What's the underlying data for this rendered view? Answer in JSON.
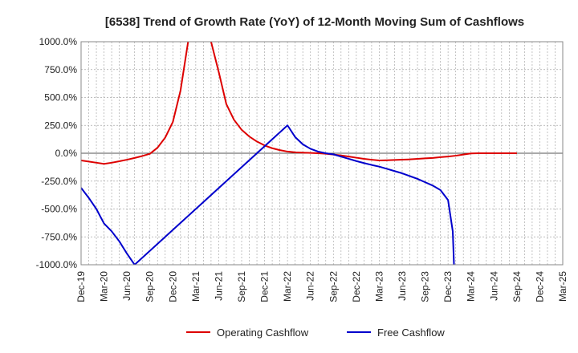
{
  "chart_data": {
    "type": "line",
    "title": "[6538]  Trend of Growth Rate (YoY) of 12-Month Moving Sum of Cashflows",
    "xlabel": "",
    "ylabel": "",
    "ylim": [
      -1000,
      1000
    ],
    "y_ticks": [
      1000,
      750,
      500,
      250,
      0,
      -250,
      -500,
      -750,
      -1000
    ],
    "y_tick_labels": [
      "1000.0%",
      "750.0%",
      "500.0%",
      "250.0%",
      "0.0%",
      "-250.0%",
      "-500.0%",
      "-750.0%",
      "-1000.0%"
    ],
    "x_ticks": [
      "2019-12",
      "2020-03",
      "2020-06",
      "2020-09",
      "2020-12",
      "2021-03",
      "2021-06",
      "2021-09",
      "2021-12",
      "2022-03",
      "2022-06",
      "2022-09",
      "2022-12",
      "2023-03",
      "2023-06",
      "2023-09",
      "2023-12",
      "2024-03",
      "2024-06",
      "2024-09",
      "2024-12",
      "2025-03"
    ],
    "x_tick_labels": [
      "Dec-19",
      "Mar-20",
      "Jun-20",
      "Sep-20",
      "Dec-20",
      "Mar-21",
      "Jun-21",
      "Sep-21",
      "Dec-21",
      "Mar-22",
      "Jun-22",
      "Sep-22",
      "Dec-22",
      "Mar-23",
      "Jun-23",
      "Sep-23",
      "Dec-23",
      "Mar-24",
      "Jun-24",
      "Sep-24",
      "Dec-24",
      "Mar-25"
    ],
    "xlim": [
      "2019-12",
      "2025-03"
    ],
    "grid": true,
    "legend_position": "bottom",
    "series": [
      {
        "name": "Operating Cashflow",
        "color": "#dd0000",
        "points": [
          [
            "2019-12",
            -65
          ],
          [
            "2020-01",
            -75
          ],
          [
            "2020-02",
            -85
          ],
          [
            "2020-03",
            -95
          ],
          [
            "2020-04",
            -85
          ],
          [
            "2020-05",
            -72
          ],
          [
            "2020-06",
            -58
          ],
          [
            "2020-07",
            -42
          ],
          [
            "2020-08",
            -25
          ],
          [
            "2020-09",
            -5
          ],
          [
            "2020-10",
            50
          ],
          [
            "2020-11",
            140
          ],
          [
            "2020-12",
            280
          ],
          [
            "2021-01",
            560
          ],
          [
            "2021-02",
            1000
          ],
          [
            "2021-03",
            null
          ],
          [
            "2021-04",
            null
          ],
          [
            "2021-05",
            1000
          ],
          [
            "2021-06",
            730
          ],
          [
            "2021-07",
            440
          ],
          [
            "2021-08",
            300
          ],
          [
            "2021-09",
            210
          ],
          [
            "2021-10",
            150
          ],
          [
            "2021-11",
            105
          ],
          [
            "2021-12",
            70
          ],
          [
            "2022-01",
            45
          ],
          [
            "2022-02",
            28
          ],
          [
            "2022-03",
            15
          ],
          [
            "2022-04",
            8
          ],
          [
            "2022-05",
            5
          ],
          [
            "2022-06",
            3
          ],
          [
            "2022-07",
            0
          ],
          [
            "2022-08",
            -5
          ],
          [
            "2022-09",
            -12
          ],
          [
            "2022-10",
            -20
          ],
          [
            "2022-11",
            -30
          ],
          [
            "2022-12",
            -40
          ],
          [
            "2023-01",
            -50
          ],
          [
            "2023-02",
            -58
          ],
          [
            "2023-03",
            -65
          ],
          [
            "2023-04",
            -63
          ],
          [
            "2023-05",
            -60
          ],
          [
            "2023-06",
            -58
          ],
          [
            "2023-07",
            -55
          ],
          [
            "2023-08",
            -50
          ],
          [
            "2023-09",
            -46
          ],
          [
            "2023-10",
            -42
          ],
          [
            "2023-11",
            -35
          ],
          [
            "2023-12",
            -30
          ],
          [
            "2024-01",
            -22
          ],
          [
            "2024-02",
            -12
          ],
          [
            "2024-03",
            -2
          ],
          [
            "2024-04",
            0
          ],
          [
            "2024-05",
            0
          ],
          [
            "2024-06",
            0
          ],
          [
            "2024-07",
            0
          ],
          [
            "2024-08",
            0
          ],
          [
            "2024-09",
            0
          ]
        ]
      },
      {
        "name": "Free Cashflow",
        "color": "#0000cc",
        "points": [
          [
            "2019-12",
            -310
          ],
          [
            "2020-01",
            -400
          ],
          [
            "2020-02",
            -500
          ],
          [
            "2020-03",
            -630
          ],
          [
            "2020-04",
            -700
          ],
          [
            "2020-05",
            -790
          ],
          [
            "2020-06",
            -900
          ],
          [
            "2020-07",
            -1000
          ],
          [
            "2022-03",
            250
          ],
          [
            "2022-04",
            145
          ],
          [
            "2022-05",
            80
          ],
          [
            "2022-06",
            40
          ],
          [
            "2022-07",
            15
          ],
          [
            "2022-08",
            0
          ],
          [
            "2022-09",
            -10
          ],
          [
            "2022-10",
            -30
          ],
          [
            "2022-11",
            -50
          ],
          [
            "2022-12",
            -70
          ],
          [
            "2023-01",
            -88
          ],
          [
            "2023-02",
            -105
          ],
          [
            "2023-03",
            -120
          ],
          [
            "2023-04",
            -140
          ],
          [
            "2023-05",
            -160
          ],
          [
            "2023-06",
            -180
          ],
          [
            "2023-07",
            -205
          ],
          [
            "2023-08",
            -230
          ],
          [
            "2023-09",
            -260
          ],
          [
            "2023-10",
            -290
          ],
          [
            "2023-11",
            -330
          ],
          [
            "2023-12",
            -420
          ],
          [
            "2023-12-20",
            -700
          ],
          [
            "2023-12-25",
            -1000
          ]
        ]
      }
    ]
  }
}
